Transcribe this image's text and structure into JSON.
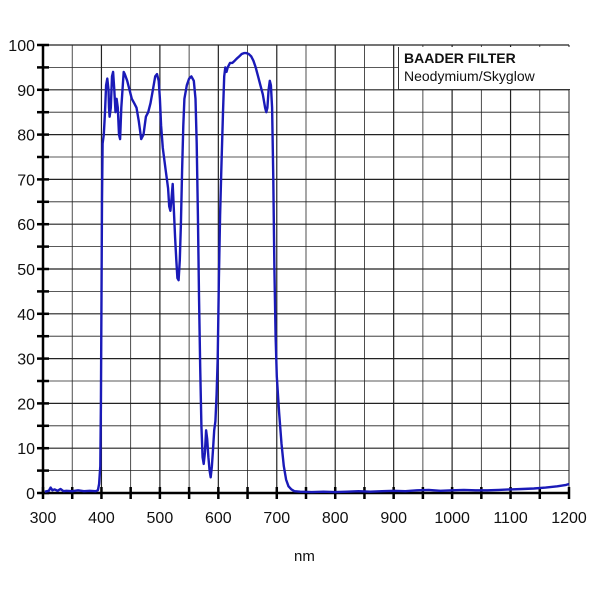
{
  "chart_data": {
    "type": "line",
    "title": "",
    "legend": {
      "title": "BAADER FILTER",
      "subtitle": "Neodymium/Skyglow",
      "position": "top-right"
    },
    "xlabel": "nm",
    "ylabel": "",
    "xlim": [
      300,
      1200
    ],
    "ylim": [
      0,
      100
    ],
    "x_ticks": [
      300,
      400,
      500,
      600,
      700,
      800,
      900,
      1000,
      1100,
      1200
    ],
    "y_ticks": [
      0,
      10,
      20,
      30,
      40,
      50,
      60,
      70,
      80,
      90,
      100
    ],
    "x_tick_labels": [
      "300",
      "400",
      "500",
      "600",
      "700",
      "800",
      "900",
      "1000",
      "1100",
      "1200"
    ],
    "y_tick_labels": [
      "0",
      "10",
      "20",
      "30",
      "40",
      "50",
      "60",
      "70",
      "80",
      "90",
      "100"
    ],
    "grid": {
      "x_step": 50,
      "y_step": 5
    },
    "line_color": "#1a1ab8",
    "series": [
      {
        "name": "Neodymium/Skyglow transmission",
        "points": [
          [
            303,
            0.3
          ],
          [
            310,
            0.5
          ],
          [
            313,
            1.2
          ],
          [
            316,
            0.6
          ],
          [
            320,
            0.8
          ],
          [
            325,
            0.5
          ],
          [
            330,
            0.9
          ],
          [
            335,
            0.4
          ],
          [
            340,
            0.5
          ],
          [
            350,
            0.4
          ],
          [
            360,
            0.6
          ],
          [
            370,
            0.4
          ],
          [
            380,
            0.5
          ],
          [
            390,
            0.4
          ],
          [
            394,
            0.6
          ],
          [
            396,
            2
          ],
          [
            398,
            6
          ],
          [
            399,
            20
          ],
          [
            400,
            40
          ],
          [
            401,
            65
          ],
          [
            402,
            78
          ],
          [
            404,
            80
          ],
          [
            406,
            85
          ],
          [
            408,
            91
          ],
          [
            410,
            92.5
          ],
          [
            412,
            90
          ],
          [
            413,
            86
          ],
          [
            414,
            84
          ],
          [
            416,
            86
          ],
          [
            418,
            93
          ],
          [
            420,
            94
          ],
          [
            422,
            90
          ],
          [
            424,
            85
          ],
          [
            426,
            88
          ],
          [
            428,
            86
          ],
          [
            430,
            80
          ],
          [
            432,
            79
          ],
          [
            434,
            86
          ],
          [
            436,
            90
          ],
          [
            438,
            94
          ],
          [
            440,
            93.5
          ],
          [
            444,
            92
          ],
          [
            448,
            90
          ],
          [
            452,
            88
          ],
          [
            456,
            87
          ],
          [
            460,
            86
          ],
          [
            464,
            83
          ],
          [
            468,
            79
          ],
          [
            472,
            80
          ],
          [
            476,
            84
          ],
          [
            480,
            85
          ],
          [
            484,
            87
          ],
          [
            488,
            90
          ],
          [
            492,
            93
          ],
          [
            495,
            93.5
          ],
          [
            498,
            92
          ],
          [
            500,
            88
          ],
          [
            502,
            82
          ],
          [
            505,
            77
          ],
          [
            510,
            72
          ],
          [
            514,
            68
          ],
          [
            516,
            64
          ],
          [
            518,
            63
          ],
          [
            520,
            66
          ],
          [
            522,
            69
          ],
          [
            524,
            63
          ],
          [
            526,
            57
          ],
          [
            528,
            52
          ],
          [
            530,
            48
          ],
          [
            532,
            47.5
          ],
          [
            534,
            52
          ],
          [
            536,
            60
          ],
          [
            538,
            72
          ],
          [
            540,
            82
          ],
          [
            542,
            88
          ],
          [
            546,
            91
          ],
          [
            550,
            92.5
          ],
          [
            554,
            93
          ],
          [
            558,
            92
          ],
          [
            561,
            88
          ],
          [
            563,
            78
          ],
          [
            565,
            62
          ],
          [
            567,
            44
          ],
          [
            569,
            28
          ],
          [
            571,
            15
          ],
          [
            573,
            8
          ],
          [
            575,
            6.5
          ],
          [
            577,
            9
          ],
          [
            579,
            14
          ],
          [
            581,
            12
          ],
          [
            583,
            8
          ],
          [
            585,
            5
          ],
          [
            587,
            3.5
          ],
          [
            589,
            6
          ],
          [
            591,
            10
          ],
          [
            593,
            14
          ],
          [
            595,
            16
          ],
          [
            597,
            22
          ],
          [
            599,
            30
          ],
          [
            601,
            48
          ],
          [
            603,
            62
          ],
          [
            605,
            72
          ],
          [
            608,
            85
          ],
          [
            610,
            93
          ],
          [
            612,
            95
          ],
          [
            614,
            94
          ],
          [
            616,
            95
          ],
          [
            620,
            96
          ],
          [
            624,
            96
          ],
          [
            628,
            96.5
          ],
          [
            632,
            97
          ],
          [
            636,
            97.5
          ],
          [
            640,
            98
          ],
          [
            644,
            98.2
          ],
          [
            648,
            98.2
          ],
          [
            652,
            98
          ],
          [
            656,
            97.5
          ],
          [
            660,
            96.5
          ],
          [
            664,
            95
          ],
          [
            668,
            93
          ],
          [
            672,
            91
          ],
          [
            676,
            89
          ],
          [
            680,
            86
          ],
          [
            682,
            85
          ],
          [
            684,
            86
          ],
          [
            686,
            90
          ],
          [
            688,
            92
          ],
          [
            690,
            91
          ],
          [
            692,
            86
          ],
          [
            694,
            70
          ],
          [
            696,
            50
          ],
          [
            698,
            35
          ],
          [
            700,
            26
          ],
          [
            704,
            18
          ],
          [
            708,
            11
          ],
          [
            712,
            6
          ],
          [
            716,
            3
          ],
          [
            720,
            1.5
          ],
          [
            725,
            0.8
          ],
          [
            730,
            0.4
          ],
          [
            740,
            0.3
          ],
          [
            760,
            0.2
          ],
          [
            780,
            0.3
          ],
          [
            800,
            0.2
          ],
          [
            820,
            0.3
          ],
          [
            840,
            0.4
          ],
          [
            860,
            0.3
          ],
          [
            880,
            0.4
          ],
          [
            900,
            0.5
          ],
          [
            920,
            0.4
          ],
          [
            940,
            0.6
          ],
          [
            960,
            0.7
          ],
          [
            980,
            0.5
          ],
          [
            1000,
            0.6
          ],
          [
            1020,
            0.7
          ],
          [
            1040,
            0.6
          ],
          [
            1060,
            0.6
          ],
          [
            1080,
            0.7
          ],
          [
            1100,
            0.8
          ],
          [
            1120,
            0.9
          ],
          [
            1140,
            1.0
          ],
          [
            1160,
            1.2
          ],
          [
            1180,
            1.5
          ],
          [
            1195,
            1.8
          ],
          [
            1200,
            2.0
          ]
        ]
      }
    ]
  }
}
